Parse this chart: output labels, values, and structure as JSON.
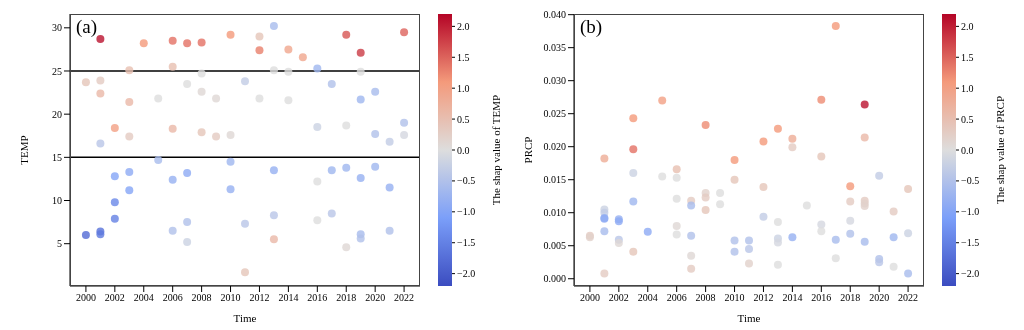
{
  "chart_data": [
    {
      "type": "scatter",
      "title": "(a)",
      "xlabel": "Time",
      "ylabel": "TEMP",
      "clabel": "The shap value of TEMP",
      "marker": "circle",
      "grid": false,
      "x": [
        2000,
        2000,
        2001,
        2001,
        2001,
        2001,
        2001,
        2001,
        2002,
        2002,
        2002,
        2002,
        2003,
        2003,
        2003,
        2003,
        2003,
        2004,
        2005,
        2005,
        2006,
        2006,
        2006,
        2006,
        2006,
        2007,
        2007,
        2007,
        2007,
        2007,
        2008,
        2008,
        2008,
        2008,
        2009,
        2009,
        2010,
        2010,
        2010,
        2010,
        2011,
        2011,
        2011,
        2012,
        2012,
        2012,
        2013,
        2013,
        2013,
        2013,
        2013,
        2014,
        2014,
        2014,
        2015,
        2016,
        2016,
        2016,
        2016,
        2017,
        2017,
        2017,
        2018,
        2018,
        2018,
        2018,
        2019,
        2019,
        2019,
        2019,
        2019,
        2019,
        2020,
        2020,
        2020,
        2021,
        2021,
        2021,
        2022,
        2022,
        2022
      ],
      "values": [
        23.7,
        6.0,
        28.7,
        23.9,
        22.4,
        16.6,
        6.4,
        6.1,
        18.4,
        12.8,
        9.8,
        7.9,
        25.1,
        21.4,
        17.4,
        13.3,
        11.2,
        28.2,
        21.8,
        14.7,
        28.5,
        25.5,
        18.3,
        12.4,
        6.5,
        28.2,
        23.5,
        13.2,
        7.5,
        5.2,
        28.3,
        24.7,
        22.6,
        17.9,
        21.8,
        17.4,
        29.2,
        17.6,
        14.5,
        11.3,
        23.8,
        7.3,
        1.7,
        29.0,
        27.4,
        21.8,
        30.2,
        25.1,
        13.5,
        8.3,
        5.5,
        27.5,
        24.9,
        21.6,
        26.6,
        25.3,
        18.5,
        12.2,
        7.7,
        23.5,
        13.5,
        8.5,
        29.2,
        18.7,
        13.8,
        4.6,
        27.1,
        24.9,
        21.7,
        12.6,
        6.1,
        5.6,
        22.6,
        17.7,
        13.9,
        16.8,
        11.5,
        6.5,
        29.5,
        19.0,
        17.6
      ],
      "cvalues": [
        0.4,
        -1.8,
        2.1,
        0.3,
        0.6,
        -0.4,
        -1.7,
        -1.6,
        1.0,
        -1.0,
        -1.4,
        -1.5,
        0.5,
        0.6,
        0.3,
        -0.9,
        -1.0,
        1.1,
        0.0,
        -0.6,
        1.4,
        0.5,
        0.6,
        -0.8,
        -0.5,
        1.4,
        0.0,
        -0.9,
        -0.5,
        -0.2,
        1.4,
        0.0,
        0.1,
        0.4,
        0.1,
        0.3,
        1.1,
        0.1,
        -0.7,
        -0.8,
        -0.3,
        -0.4,
        0.4,
        0.4,
        1.3,
        0.0,
        -0.6,
        0.0,
        -0.8,
        -0.4,
        0.6,
        0.9,
        0.0,
        0.0,
        0.9,
        -0.7,
        -0.2,
        0.0,
        0.0,
        -0.5,
        -0.7,
        -0.4,
        1.6,
        0.0,
        -0.7,
        0.1,
        1.8,
        0.0,
        -0.7,
        -0.8,
        -0.6,
        -0.5,
        -0.6,
        -0.5,
        -0.7,
        -0.3,
        -0.8,
        -0.5,
        1.5,
        -0.5,
        -0.1
      ],
      "xlim": [
        1998.9,
        2023.1
      ],
      "xticks": [
        2000,
        2002,
        2004,
        2006,
        2008,
        2010,
        2012,
        2014,
        2016,
        2018,
        2020,
        2022
      ],
      "ylim": [
        0.1,
        31.6
      ],
      "yticks": [
        5,
        10,
        15,
        20,
        25,
        30
      ],
      "clim": [
        -2.2,
        2.2
      ],
      "cticks": [
        {
          "value": -2,
          "label": "−2.0"
        },
        {
          "value": -1.5,
          "label": "−1.5"
        },
        {
          "value": -1,
          "label": "−1.0"
        },
        {
          "value": -0.5,
          "label": "−0.5"
        },
        {
          "value": 0,
          "label": "0.0"
        },
        {
          "value": 0.5,
          "label": "0.5"
        },
        {
          "value": 1,
          "label": "1.0"
        },
        {
          "value": 1.5,
          "label": "1.5"
        },
        {
          "value": 2,
          "label": "2.0"
        }
      ],
      "ref_lines": [
        {
          "axis": "y",
          "value": 25,
          "color": "#000000"
        },
        {
          "axis": "y",
          "value": 15,
          "color": "#000000"
        }
      ]
    },
    {
      "type": "scatter",
      "title": "(b)",
      "xlabel": "Time",
      "ylabel": "PRCP",
      "clabel": "The shap value of PRCP",
      "marker": "circle",
      "grid": false,
      "x": [
        2000,
        2000,
        2001,
        2001,
        2001,
        2001,
        2001,
        2001,
        2001,
        2002,
        2002,
        2002,
        2002,
        2003,
        2003,
        2003,
        2003,
        2003,
        2004,
        2005,
        2005,
        2006,
        2006,
        2006,
        2006,
        2006,
        2007,
        2007,
        2007,
        2007,
        2007,
        2008,
        2008,
        2008,
        2008,
        2009,
        2009,
        2010,
        2010,
        2010,
        2010,
        2011,
        2011,
        2011,
        2012,
        2012,
        2012,
        2013,
        2013,
        2013,
        2013,
        2013,
        2014,
        2014,
        2014,
        2015,
        2016,
        2016,
        2016,
        2016,
        2017,
        2017,
        2017,
        2018,
        2018,
        2018,
        2018,
        2019,
        2019,
        2019,
        2019,
        2019,
        2019,
        2020,
        2020,
        2020,
        2021,
        2021,
        2021,
        2022,
        2022,
        2022
      ],
      "values": [
        0.0065,
        0.0063,
        0.0182,
        0.0105,
        0.01,
        0.0092,
        0.0091,
        0.0072,
        0.0008,
        0.009,
        0.0087,
        0.0059,
        0.0054,
        0.0243,
        0.0196,
        0.016,
        0.0117,
        0.0041,
        0.0071,
        0.027,
        0.0155,
        0.0166,
        0.0153,
        0.0121,
        0.008,
        0.0067,
        0.0118,
        0.0111,
        0.0065,
        0.0035,
        0.0015,
        0.0233,
        0.013,
        0.0123,
        0.0104,
        0.013,
        0.0113,
        0.018,
        0.015,
        0.0058,
        0.0041,
        0.0058,
        0.0045,
        0.0023,
        0.0208,
        0.0139,
        0.0094,
        0.0227,
        0.0086,
        0.0061,
        0.0055,
        0.0021,
        0.0212,
        0.0199,
        0.0063,
        0.0111,
        0.0271,
        0.0185,
        0.0082,
        0.0072,
        0.0383,
        0.0059,
        0.0031,
        0.014,
        0.0117,
        0.0088,
        0.0068,
        0.0264,
        0.0214,
        0.0118,
        0.0114,
        0.011,
        0.0056,
        0.0156,
        0.003,
        0.0025,
        0.0102,
        0.0063,
        0.0018,
        0.0136,
        0.0069,
        0.0008
      ],
      "cvalues": [
        0.3,
        0.2,
        0.8,
        -0.2,
        -0.3,
        -0.8,
        -0.9,
        -0.6,
        0.3,
        -0.8,
        -0.9,
        -0.4,
        0.1,
        1.1,
        1.4,
        -0.2,
        -0.7,
        0.4,
        -0.9,
        1.0,
        0.0,
        0.5,
        0.0,
        0.0,
        0.1,
        0.0,
        0.3,
        -0.6,
        -0.5,
        0.1,
        0.3,
        1.2,
        0.2,
        0.3,
        0.4,
        0.0,
        0.0,
        1.1,
        0.4,
        -0.5,
        -0.5,
        -0.5,
        -0.4,
        0.2,
        1.1,
        0.4,
        -0.3,
        1.1,
        0.0,
        -0.2,
        -0.1,
        0.0,
        0.8,
        0.3,
        -0.8,
        0.0,
        1.2,
        0.4,
        -0.1,
        0.0,
        1.1,
        -0.6,
        0.0,
        1.1,
        0.3,
        -0.1,
        -0.5,
        2.1,
        0.6,
        0.3,
        0.2,
        0.2,
        -0.6,
        -0.3,
        -0.5,
        -0.4,
        0.3,
        -0.7,
        0.0,
        0.4,
        -0.2,
        -0.6
      ],
      "xlim": [
        1998.9,
        2023.1
      ],
      "xticks": [
        2000,
        2002,
        2004,
        2006,
        2008,
        2010,
        2012,
        2014,
        2016,
        2018,
        2020,
        2022
      ],
      "ylim": [
        -0.0011,
        0.0401
      ],
      "yticks": [
        {
          "value": 0,
          "label": "0.000"
        },
        {
          "value": 0.005,
          "label": "0.005"
        },
        {
          "value": 0.01,
          "label": "0.010"
        },
        {
          "value": 0.015,
          "label": "0.015"
        },
        {
          "value": 0.02,
          "label": "0.020"
        },
        {
          "value": 0.025,
          "label": "0.025"
        },
        {
          "value": 0.03,
          "label": "0.030"
        },
        {
          "value": 0.035,
          "label": "0.035"
        },
        {
          "value": 0.04,
          "label": "0.040"
        }
      ],
      "clim": [
        -2.2,
        2.2
      ],
      "cticks": [
        {
          "value": -2,
          "label": "−2.0"
        },
        {
          "value": -1.5,
          "label": "−1.5"
        },
        {
          "value": -1,
          "label": "−1.0"
        },
        {
          "value": -0.5,
          "label": "−0.5"
        },
        {
          "value": 0,
          "label": "0.0"
        },
        {
          "value": 0.5,
          "label": "0.5"
        },
        {
          "value": 1,
          "label": "1.0"
        },
        {
          "value": 1.5,
          "label": "1.5"
        },
        {
          "value": 2,
          "label": "2.0"
        }
      ]
    }
  ]
}
